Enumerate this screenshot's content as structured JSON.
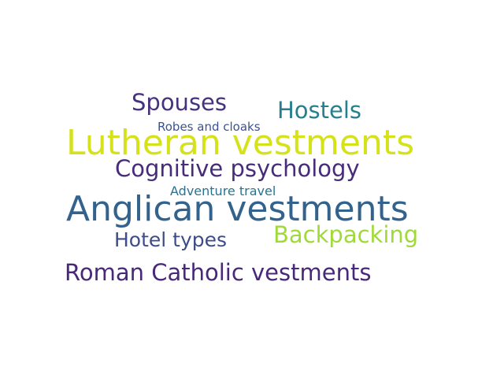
{
  "words": [
    {
      "text": "Spouses",
      "color": "#46327e"
    },
    {
      "text": "Hostels",
      "color": "#277f8e"
    },
    {
      "text": "Robes and cloaks",
      "color": "#3b528b"
    },
    {
      "text": "Lutheran vestments",
      "color": "#d5e21a"
    },
    {
      "text": "Cognitive psychology",
      "color": "#472c7a"
    },
    {
      "text": "Adventure travel",
      "color": "#2c728e"
    },
    {
      "text": "Anglican vestments",
      "color": "#33638d"
    },
    {
      "text": "Backpacking",
      "color": "#a0da39"
    },
    {
      "text": "Hotel types",
      "color": "#3e4c8a"
    },
    {
      "text": "Roman Catholic vestments",
      "color": "#482878"
    }
  ]
}
